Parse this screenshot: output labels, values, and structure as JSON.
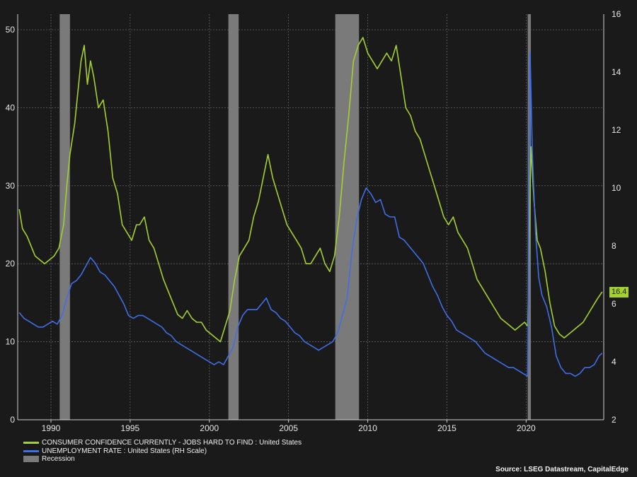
{
  "chart_data": {
    "type": "line",
    "title": "",
    "source": "Source: LSEG Datastream, CapitalEdge",
    "x_ticks": [
      "1990",
      "1995",
      "2000",
      "2005",
      "2010",
      "2015",
      "2020"
    ],
    "left_axis": {
      "range": [
        0,
        52
      ],
      "ticks": [
        "0",
        "10",
        "20",
        "30",
        "40",
        "50"
      ]
    },
    "right_axis": {
      "range": [
        2,
        16
      ],
      "ticks": [
        "2",
        "4",
        "6",
        "8",
        "10",
        "12",
        "14",
        "16"
      ]
    },
    "grid": true,
    "legend_position": "bottom-left",
    "colors": {
      "confidence": "#a4d12e",
      "unemployment": "#3f6ee8",
      "recession": "#7a7a7a",
      "background": "#1a1a1a"
    },
    "recessions": [
      {
        "start": 1990.55,
        "end": 1991.2
      },
      {
        "start": 2001.2,
        "end": 2001.85
      },
      {
        "start": 2007.95,
        "end": 2009.45
      },
      {
        "start": 2020.1,
        "end": 2020.3
      }
    ],
    "last_value_label": "16.4",
    "series": [
      {
        "name": "CONSUMER CONFIDENCE CURRENTLY - JOBS HARD TO FIND : United States",
        "axis": "left",
        "points": [
          [
            1988.0,
            27
          ],
          [
            1988.2,
            24.5
          ],
          [
            1988.5,
            23.5
          ],
          [
            1988.8,
            22
          ],
          [
            1989.0,
            21
          ],
          [
            1989.3,
            20.5
          ],
          [
            1989.6,
            20
          ],
          [
            1989.9,
            20.5
          ],
          [
            1990.2,
            21
          ],
          [
            1990.5,
            22
          ],
          [
            1990.8,
            25
          ],
          [
            1991.0,
            30
          ],
          [
            1991.2,
            34
          ],
          [
            1991.5,
            38
          ],
          [
            1991.7,
            42
          ],
          [
            1991.9,
            46
          ],
          [
            1992.1,
            48
          ],
          [
            1992.3,
            43
          ],
          [
            1992.5,
            46
          ],
          [
            1992.7,
            44
          ],
          [
            1993.0,
            40
          ],
          [
            1993.3,
            41
          ],
          [
            1993.6,
            37
          ],
          [
            1993.9,
            31
          ],
          [
            1994.2,
            29
          ],
          [
            1994.5,
            25
          ],
          [
            1994.8,
            24
          ],
          [
            1995.1,
            23
          ],
          [
            1995.4,
            25
          ],
          [
            1995.6,
            25
          ],
          [
            1995.9,
            26
          ],
          [
            1996.2,
            23
          ],
          [
            1996.5,
            22
          ],
          [
            1996.8,
            20
          ],
          [
            1997.1,
            18
          ],
          [
            1997.4,
            16.5
          ],
          [
            1997.7,
            15
          ],
          [
            1998.0,
            13.5
          ],
          [
            1998.3,
            13
          ],
          [
            1998.6,
            14
          ],
          [
            1998.9,
            13
          ],
          [
            1999.2,
            12.5
          ],
          [
            1999.5,
            12.5
          ],
          [
            1999.8,
            11.5
          ],
          [
            2000.1,
            11
          ],
          [
            2000.4,
            10.5
          ],
          [
            2000.7,
            10
          ],
          [
            2001.0,
            12
          ],
          [
            2001.3,
            14
          ],
          [
            2001.6,
            18
          ],
          [
            2001.9,
            21
          ],
          [
            2002.2,
            22
          ],
          [
            2002.5,
            23
          ],
          [
            2002.8,
            26
          ],
          [
            2003.1,
            28
          ],
          [
            2003.4,
            31
          ],
          [
            2003.7,
            34
          ],
          [
            2004.0,
            31
          ],
          [
            2004.3,
            29
          ],
          [
            2004.6,
            27
          ],
          [
            2004.9,
            25
          ],
          [
            2005.2,
            24
          ],
          [
            2005.5,
            23
          ],
          [
            2005.8,
            22
          ],
          [
            2006.1,
            20
          ],
          [
            2006.4,
            20
          ],
          [
            2006.7,
            21
          ],
          [
            2007.0,
            22
          ],
          [
            2007.3,
            20
          ],
          [
            2007.6,
            19
          ],
          [
            2007.9,
            21
          ],
          [
            2008.2,
            26
          ],
          [
            2008.5,
            33
          ],
          [
            2008.8,
            39
          ],
          [
            2009.1,
            46
          ],
          [
            2009.4,
            48
          ],
          [
            2009.7,
            49
          ],
          [
            2010.0,
            47
          ],
          [
            2010.3,
            46
          ],
          [
            2010.6,
            45
          ],
          [
            2010.9,
            46
          ],
          [
            2011.2,
            47
          ],
          [
            2011.5,
            46
          ],
          [
            2011.8,
            48
          ],
          [
            2012.1,
            44
          ],
          [
            2012.4,
            40
          ],
          [
            2012.7,
            39
          ],
          [
            2013.0,
            37
          ],
          [
            2013.3,
            36
          ],
          [
            2013.6,
            34
          ],
          [
            2013.9,
            32
          ],
          [
            2014.2,
            30
          ],
          [
            2014.5,
            28
          ],
          [
            2014.8,
            26
          ],
          [
            2015.1,
            25
          ],
          [
            2015.4,
            26
          ],
          [
            2015.7,
            24
          ],
          [
            2016.0,
            23
          ],
          [
            2016.3,
            22
          ],
          [
            2016.6,
            20
          ],
          [
            2016.9,
            18
          ],
          [
            2017.2,
            17
          ],
          [
            2017.5,
            16
          ],
          [
            2017.8,
            15
          ],
          [
            2018.1,
            14
          ],
          [
            2018.4,
            13
          ],
          [
            2018.7,
            12.5
          ],
          [
            2019.0,
            12
          ],
          [
            2019.3,
            11.5
          ],
          [
            2019.6,
            12
          ],
          [
            2019.9,
            12.5
          ],
          [
            2020.1,
            12
          ],
          [
            2020.3,
            35
          ],
          [
            2020.5,
            28
          ],
          [
            2020.7,
            23
          ],
          [
            2020.9,
            22
          ],
          [
            2021.2,
            19
          ],
          [
            2021.5,
            15
          ],
          [
            2021.8,
            12
          ],
          [
            2022.1,
            11
          ],
          [
            2022.4,
            10.5
          ],
          [
            2022.7,
            11
          ],
          [
            2023.0,
            11.5
          ],
          [
            2023.3,
            12
          ],
          [
            2023.6,
            12.5
          ],
          [
            2023.9,
            13.5
          ],
          [
            2024.2,
            14.5
          ],
          [
            2024.5,
            15.5
          ],
          [
            2024.8,
            16.4
          ]
        ]
      },
      {
        "name": "UNEMPLOYMENT RATE : United States (RH Scale)",
        "axis": "right",
        "points": [
          [
            1988.0,
            5.7
          ],
          [
            1988.3,
            5.5
          ],
          [
            1988.6,
            5.4
          ],
          [
            1988.9,
            5.3
          ],
          [
            1989.2,
            5.2
          ],
          [
            1989.5,
            5.2
          ],
          [
            1989.8,
            5.3
          ],
          [
            1990.1,
            5.4
          ],
          [
            1990.4,
            5.3
          ],
          [
            1990.7,
            5.6
          ],
          [
            1991.0,
            6.2
          ],
          [
            1991.3,
            6.7
          ],
          [
            1991.6,
            6.8
          ],
          [
            1991.9,
            7.0
          ],
          [
            1992.2,
            7.3
          ],
          [
            1992.5,
            7.6
          ],
          [
            1992.8,
            7.4
          ],
          [
            1993.1,
            7.1
          ],
          [
            1993.4,
            7.0
          ],
          [
            1993.7,
            6.8
          ],
          [
            1994.0,
            6.6
          ],
          [
            1994.3,
            6.3
          ],
          [
            1994.6,
            6.0
          ],
          [
            1994.9,
            5.6
          ],
          [
            1995.2,
            5.5
          ],
          [
            1995.5,
            5.6
          ],
          [
            1995.8,
            5.6
          ],
          [
            1996.1,
            5.5
          ],
          [
            1996.4,
            5.4
          ],
          [
            1996.7,
            5.3
          ],
          [
            1997.0,
            5.2
          ],
          [
            1997.3,
            5.0
          ],
          [
            1997.6,
            4.9
          ],
          [
            1997.9,
            4.7
          ],
          [
            1998.2,
            4.6
          ],
          [
            1998.5,
            4.5
          ],
          [
            1998.8,
            4.4
          ],
          [
            1999.1,
            4.3
          ],
          [
            1999.4,
            4.2
          ],
          [
            1999.7,
            4.1
          ],
          [
            2000.0,
            4.0
          ],
          [
            2000.3,
            3.9
          ],
          [
            2000.6,
            4.0
          ],
          [
            2000.9,
            3.9
          ],
          [
            2001.2,
            4.2
          ],
          [
            2001.5,
            4.5
          ],
          [
            2001.8,
            5.2
          ],
          [
            2002.1,
            5.6
          ],
          [
            2002.4,
            5.8
          ],
          [
            2002.7,
            5.8
          ],
          [
            2003.0,
            5.8
          ],
          [
            2003.3,
            6.0
          ],
          [
            2003.6,
            6.2
          ],
          [
            2003.9,
            5.8
          ],
          [
            2004.2,
            5.7
          ],
          [
            2004.5,
            5.5
          ],
          [
            2004.8,
            5.4
          ],
          [
            2005.1,
            5.2
          ],
          [
            2005.4,
            5.0
          ],
          [
            2005.7,
            4.9
          ],
          [
            2006.0,
            4.7
          ],
          [
            2006.3,
            4.6
          ],
          [
            2006.6,
            4.5
          ],
          [
            2006.9,
            4.4
          ],
          [
            2007.2,
            4.5
          ],
          [
            2007.5,
            4.6
          ],
          [
            2007.8,
            4.7
          ],
          [
            2008.1,
            5.0
          ],
          [
            2008.4,
            5.6
          ],
          [
            2008.7,
            6.2
          ],
          [
            2009.0,
            7.8
          ],
          [
            2009.3,
            8.9
          ],
          [
            2009.6,
            9.6
          ],
          [
            2009.9,
            10.0
          ],
          [
            2010.2,
            9.8
          ],
          [
            2010.5,
            9.5
          ],
          [
            2010.8,
            9.6
          ],
          [
            2011.1,
            9.1
          ],
          [
            2011.4,
            9.0
          ],
          [
            2011.7,
            9.0
          ],
          [
            2012.0,
            8.3
          ],
          [
            2012.3,
            8.2
          ],
          [
            2012.6,
            8.0
          ],
          [
            2012.9,
            7.8
          ],
          [
            2013.2,
            7.6
          ],
          [
            2013.5,
            7.4
          ],
          [
            2013.8,
            7.0
          ],
          [
            2014.1,
            6.6
          ],
          [
            2014.4,
            6.3
          ],
          [
            2014.7,
            5.9
          ],
          [
            2015.0,
            5.6
          ],
          [
            2015.3,
            5.4
          ],
          [
            2015.6,
            5.1
          ],
          [
            2015.9,
            5.0
          ],
          [
            2016.2,
            4.9
          ],
          [
            2016.5,
            4.8
          ],
          [
            2016.8,
            4.7
          ],
          [
            2017.1,
            4.5
          ],
          [
            2017.4,
            4.3
          ],
          [
            2017.7,
            4.2
          ],
          [
            2018.0,
            4.1
          ],
          [
            2018.3,
            4.0
          ],
          [
            2018.6,
            3.9
          ],
          [
            2018.9,
            3.8
          ],
          [
            2019.2,
            3.8
          ],
          [
            2019.5,
            3.7
          ],
          [
            2019.8,
            3.6
          ],
          [
            2020.1,
            3.5
          ],
          [
            2020.25,
            14.7
          ],
          [
            2020.4,
            11.1
          ],
          [
            2020.6,
            8.4
          ],
          [
            2020.8,
            6.9
          ],
          [
            2021.0,
            6.3
          ],
          [
            2021.3,
            5.9
          ],
          [
            2021.6,
            5.2
          ],
          [
            2021.9,
            4.2
          ],
          [
            2022.2,
            3.8
          ],
          [
            2022.5,
            3.6
          ],
          [
            2022.8,
            3.6
          ],
          [
            2023.1,
            3.5
          ],
          [
            2023.4,
            3.6
          ],
          [
            2023.7,
            3.8
          ],
          [
            2024.0,
            3.8
          ],
          [
            2024.3,
            3.9
          ],
          [
            2024.6,
            4.2
          ],
          [
            2024.8,
            4.3
          ]
        ]
      }
    ]
  },
  "legend": {
    "items": [
      {
        "label": "CONSUMER CONFIDENCE CURRENTLY - JOBS HARD TO FIND : United States"
      },
      {
        "label": "UNEMPLOYMENT RATE : United States (RH Scale)"
      },
      {
        "label": "Recession"
      }
    ]
  }
}
